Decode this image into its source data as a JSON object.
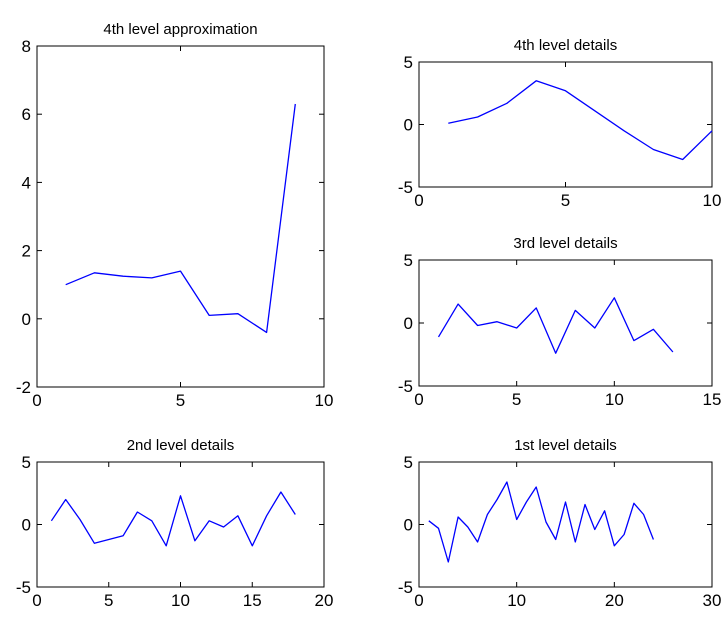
{
  "chart_data": [
    {
      "type": "line",
      "title": "4th level approximation",
      "xlim": [
        0,
        10
      ],
      "ylim": [
        -2,
        8
      ],
      "xticks": [
        "0",
        "5",
        "10"
      ],
      "yticks": [
        "-2",
        "0",
        "2",
        "4",
        "6",
        "8"
      ],
      "color": "#0000ff",
      "x": [
        1,
        2,
        3,
        4,
        5,
        6,
        7,
        8,
        9
      ],
      "values": [
        1.0,
        1.35,
        1.25,
        1.2,
        1.4,
        0.1,
        0.15,
        -0.4,
        6.3
      ]
    },
    {
      "type": "line",
      "title": "4th level details",
      "xlim": [
        0,
        10
      ],
      "ylim": [
        -5,
        5
      ],
      "xticks": [
        "0",
        "5",
        "10"
      ],
      "yticks": [
        "-5",
        "0",
        "5"
      ],
      "color": "#0000ff",
      "x": [
        1,
        2,
        3,
        4,
        5,
        6,
        7,
        8,
        9,
        10
      ],
      "values": [
        0.1,
        0.6,
        1.7,
        3.5,
        2.7,
        1.1,
        -0.5,
        -2.0,
        -2.8,
        -0.5
      ]
    },
    {
      "type": "line",
      "title": "3rd level details",
      "xlim": [
        0,
        15
      ],
      "ylim": [
        -5,
        5
      ],
      "xticks": [
        "0",
        "5",
        "10",
        "15"
      ],
      "yticks": [
        "-5",
        "0",
        "5"
      ],
      "color": "#0000ff",
      "x": [
        1,
        2,
        3,
        4,
        5,
        6,
        7,
        8,
        9,
        10,
        11,
        12,
        13
      ],
      "values": [
        -1.1,
        1.5,
        -0.2,
        0.1,
        -0.4,
        1.2,
        -2.4,
        1.0,
        -0.4,
        2.0,
        -1.4,
        -0.5,
        -2.3
      ]
    },
    {
      "type": "line",
      "title": "2nd level details",
      "xlim": [
        0,
        20
      ],
      "ylim": [
        -5,
        5
      ],
      "xticks": [
        "0",
        "5",
        "10",
        "15",
        "20"
      ],
      "yticks": [
        "-5",
        "0",
        "5"
      ],
      "color": "#0000ff",
      "x": [
        1,
        2,
        3,
        4,
        5,
        6,
        7,
        8,
        9,
        10,
        11,
        12,
        13,
        14,
        15,
        16,
        17,
        18
      ],
      "values": [
        0.3,
        2.0,
        0.4,
        -1.5,
        -1.2,
        -0.9,
        1.0,
        0.3,
        -1.7,
        2.3,
        -1.3,
        0.3,
        -0.2,
        0.7,
        -1.7,
        0.7,
        2.6,
        0.8
      ]
    },
    {
      "type": "line",
      "title": "1st level details",
      "xlim": [
        0,
        30
      ],
      "ylim": [
        -5,
        5
      ],
      "xticks": [
        "0",
        "10",
        "20",
        "30"
      ],
      "yticks": [
        "-5",
        "0",
        "5"
      ],
      "color": "#0000ff",
      "x": [
        1,
        2,
        3,
        4,
        5,
        6,
        7,
        8,
        9,
        10,
        11,
        12,
        13,
        14,
        15,
        16,
        17,
        18,
        19,
        20,
        21,
        22,
        23,
        24
      ],
      "values": [
        0.3,
        -0.3,
        -3.0,
        0.6,
        -0.2,
        -1.4,
        0.8,
        2.0,
        3.4,
        0.4,
        1.8,
        3.0,
        0.2,
        -1.2,
        1.8,
        -1.4,
        1.6,
        -0.4,
        1.1,
        -1.7,
        -0.8,
        1.7,
        0.8,
        -1.2
      ]
    }
  ]
}
